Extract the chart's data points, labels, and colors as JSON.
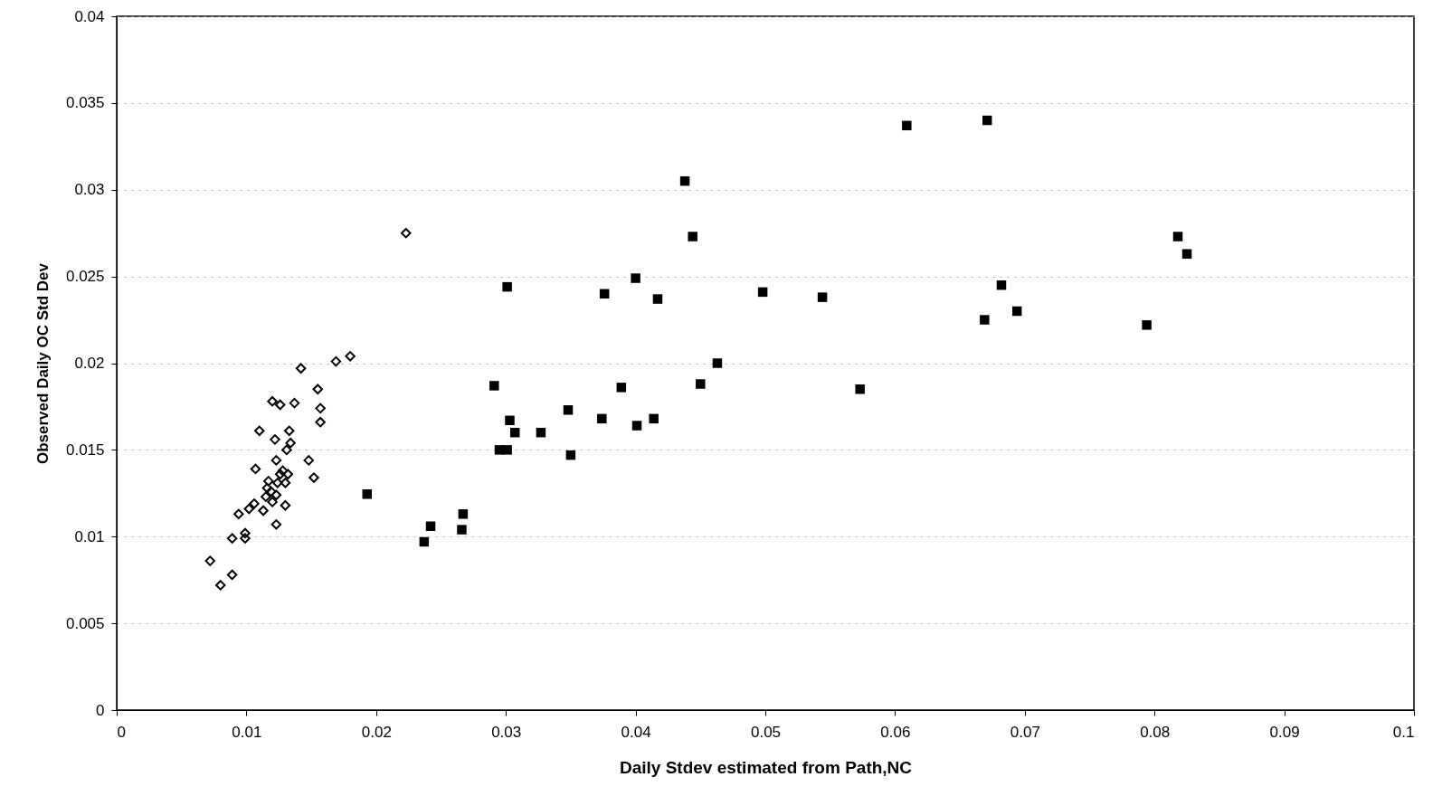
{
  "chart_data": {
    "type": "scatter",
    "xlabel": "Daily Stdev estimated from Path,NC",
    "ylabel": "Observed Daily OC Std Dev",
    "xlim": [
      0,
      0.1
    ],
    "xticks": [
      0,
      0.01,
      0.02,
      0.03,
      0.04,
      0.05,
      0.06,
      0.07,
      0.08,
      0.09,
      0.1
    ],
    "ylim": [
      0,
      0.04
    ],
    "yticks": [
      0,
      0.005,
      0.01,
      0.015,
      0.02,
      0.025,
      0.03,
      0.035,
      0.04
    ],
    "grid": "y",
    "series": [
      {
        "color": "#000000",
        "marker": "diamond",
        "x": [
          0.0072,
          0.008,
          0.0089,
          0.0089,
          0.0099,
          0.0099,
          0.0094,
          0.0102,
          0.0106,
          0.0113,
          0.0123,
          0.013,
          0.0115,
          0.0119,
          0.0116,
          0.0117,
          0.0123,
          0.012,
          0.0124,
          0.0126,
          0.013,
          0.0132,
          0.0128,
          0.0123,
          0.0107,
          0.0122,
          0.011,
          0.0133,
          0.0134,
          0.0131,
          0.0148,
          0.0152,
          0.012,
          0.0126,
          0.0137,
          0.0142,
          0.0155,
          0.0157,
          0.0157,
          0.0169,
          0.018,
          0.0223
        ],
        "values": [
          0.0086,
          0.0072,
          0.0078,
          0.0099,
          0.0102,
          0.0099,
          0.0113,
          0.0116,
          0.0119,
          0.0115,
          0.0107,
          0.0118,
          0.0123,
          0.0126,
          0.0128,
          0.0132,
          0.0124,
          0.012,
          0.0131,
          0.0136,
          0.0131,
          0.0136,
          0.0138,
          0.0144,
          0.0139,
          0.0156,
          0.0161,
          0.0161,
          0.0154,
          0.015,
          0.0144,
          0.0134,
          0.0178,
          0.0176,
          0.0177,
          0.0197,
          0.0185,
          0.0174,
          0.0166,
          0.0201,
          0.0204,
          0.0275
        ]
      },
      {
        "color": "#000000",
        "marker": "square",
        "x": [
          0.0193,
          0.0237,
          0.0242,
          0.0267,
          0.0266,
          0.0291,
          0.0301,
          0.0295,
          0.0301,
          0.0303,
          0.0307,
          0.0327,
          0.0348,
          0.035,
          0.0374,
          0.0376,
          0.0389,
          0.04,
          0.0401,
          0.0414,
          0.0417,
          0.0438,
          0.0444,
          0.045,
          0.0463,
          0.0498,
          0.0544,
          0.0573,
          0.0609,
          0.0671,
          0.0669,
          0.0682,
          0.0694,
          0.0794,
          0.0818,
          0.0825
        ],
        "values": [
          0.01245,
          0.0097,
          0.0106,
          0.0113,
          0.0104,
          0.0187,
          0.0244,
          0.015,
          0.015,
          0.0167,
          0.016,
          0.016,
          0.0173,
          0.0147,
          0.0168,
          0.024,
          0.0186,
          0.0249,
          0.0164,
          0.0168,
          0.0237,
          0.0305,
          0.0273,
          0.0188,
          0.02,
          0.0241,
          0.0238,
          0.0185,
          0.0337,
          0.034,
          0.0225,
          0.0245,
          0.023,
          0.0222,
          0.0273,
          0.0263
        ]
      }
    ]
  }
}
